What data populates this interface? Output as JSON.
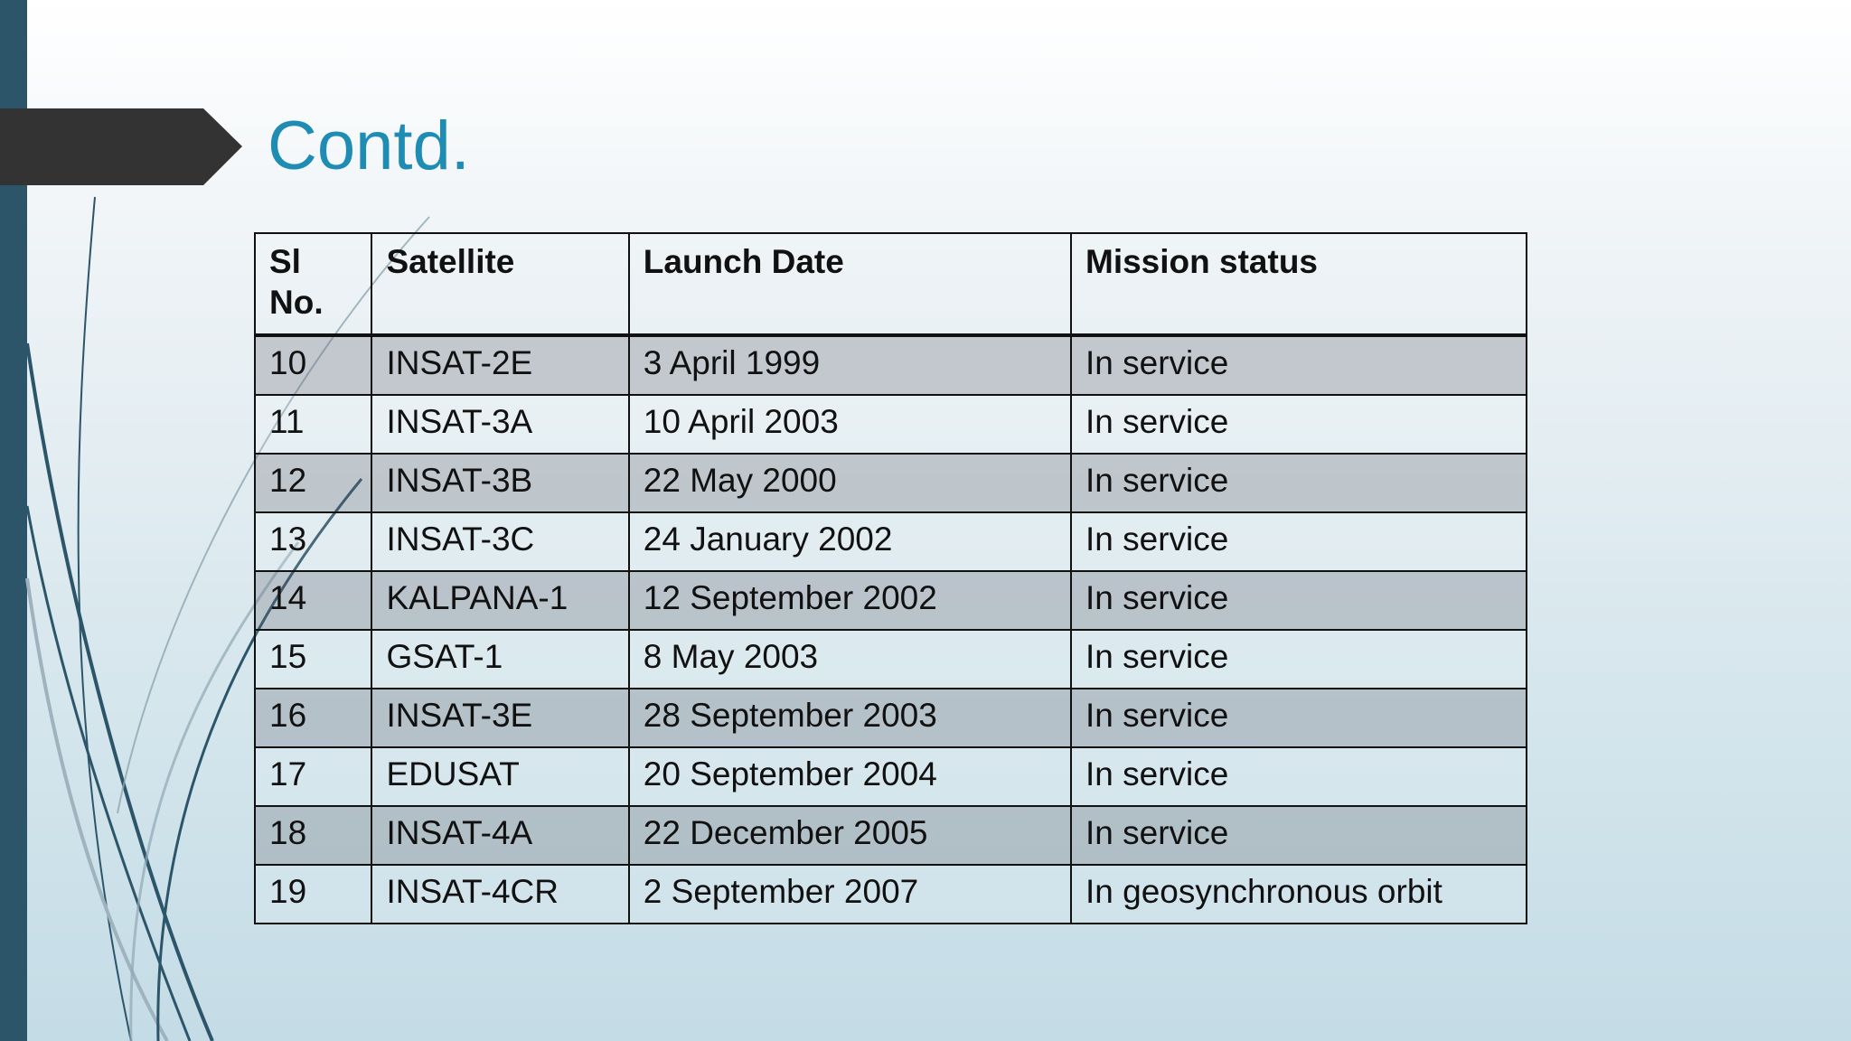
{
  "slide": {
    "title": "Contd."
  },
  "table": {
    "headers": [
      "Sl\nNo.",
      "Satellite",
      "Launch Date",
      "Mission status"
    ],
    "header_sl_line1": "Sl",
    "header_sl_line2": "No.",
    "rows": [
      {
        "sl": "10",
        "satellite": "INSAT-2E",
        "launch_date": "3 April 1999",
        "status": "In service"
      },
      {
        "sl": "11",
        "satellite": "INSAT-3A",
        "launch_date": "10 April 2003",
        "status": "In service"
      },
      {
        "sl": "12",
        "satellite": "INSAT-3B",
        "launch_date": "22 May 2000",
        "status": "In service"
      },
      {
        "sl": "13",
        "satellite": "INSAT-3C",
        "launch_date": "24 January 2002",
        "status": "In service"
      },
      {
        "sl": "14",
        "satellite": "KALPANA-1",
        "launch_date": "12 September 2002",
        "status": "In service"
      },
      {
        "sl": "15",
        "satellite": "GSAT-1",
        "launch_date": "8 May 2003",
        "status": "In service"
      },
      {
        "sl": "16",
        "satellite": "INSAT-3E",
        "launch_date": "28 September 2003",
        "status": "In service"
      },
      {
        "sl": "17",
        "satellite": "EDUSAT",
        "launch_date": "20 September 2004",
        "status": "In service"
      },
      {
        "sl": "18",
        "satellite": "INSAT-4A",
        "launch_date": "22 December 2005",
        "status": "In service"
      },
      {
        "sl": "19",
        "satellite": "INSAT-4CR",
        "launch_date": "2 September 2007",
        "status": "In geosynchronous orbit"
      }
    ]
  },
  "colors": {
    "title": "#1f8db3",
    "left_bar": "#2d5569",
    "arrow": "#333333",
    "shaded_row": "#bfc3c8"
  }
}
